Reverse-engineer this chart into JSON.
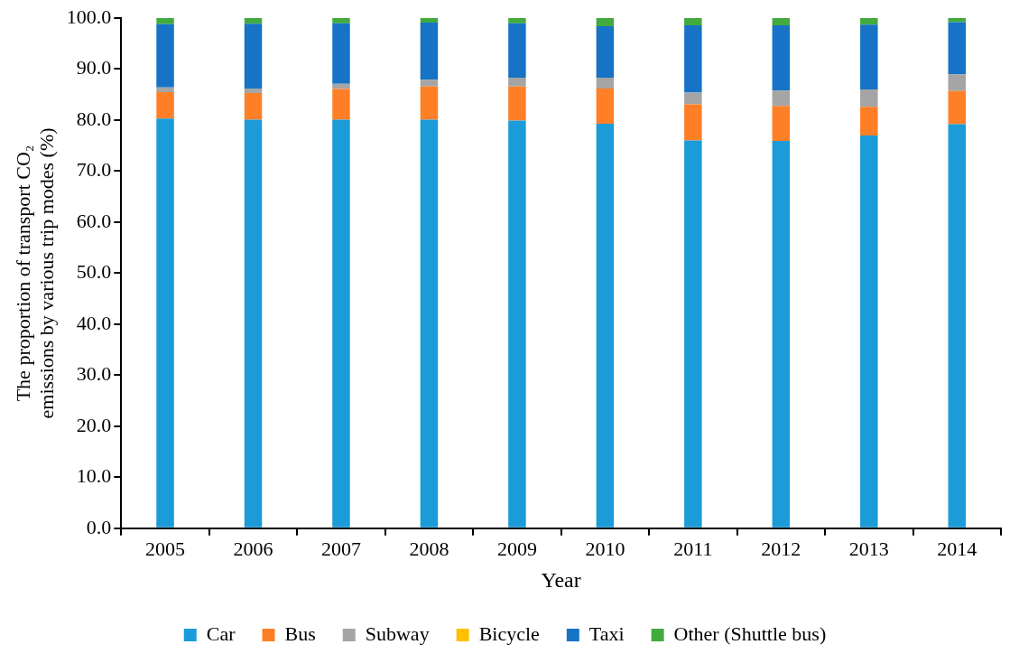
{
  "chart_data": {
    "type": "bar",
    "stacked": true,
    "xlabel": "Year",
    "ylabel": "The proportion of transport CO₂ emissions by various trip modes (%)",
    "categories": [
      "2005",
      "2006",
      "2007",
      "2008",
      "2009",
      "2010",
      "2011",
      "2012",
      "2013",
      "2014"
    ],
    "series": [
      {
        "name": "Car",
        "color": "#1b9bd7",
        "values": [
          80.3,
          80.1,
          80.1,
          80.1,
          79.9,
          79.3,
          76.0,
          75.9,
          77.0,
          79.2
        ]
      },
      {
        "name": "Bus",
        "color": "#ff7f27",
        "values": [
          5.2,
          5.2,
          6.0,
          6.5,
          6.7,
          6.9,
          7.1,
          6.9,
          5.6,
          6.5
        ]
      },
      {
        "name": "Subway",
        "color": "#a5a5a5",
        "values": [
          0.9,
          0.9,
          1.0,
          1.3,
          1.7,
          2.1,
          2.3,
          3.0,
          3.4,
          3.3
        ]
      },
      {
        "name": "Bicycle",
        "color": "#ffc000",
        "values": [
          0,
          0,
          0,
          0,
          0,
          0,
          0,
          0,
          0,
          0
        ]
      },
      {
        "name": "Taxi",
        "color": "#1673c6",
        "values": [
          12.4,
          12.7,
          11.9,
          11.2,
          10.7,
          10.1,
          13.2,
          12.8,
          12.7,
          10.2
        ]
      },
      {
        "name": "Other (Shuttle bus)",
        "color": "#43aa3e",
        "values": [
          1.2,
          1.1,
          1.0,
          0.9,
          1.0,
          1.6,
          1.4,
          1.4,
          1.3,
          0.8
        ]
      }
    ],
    "ylim": [
      0,
      100
    ],
    "yticks": [
      {
        "value": 0,
        "label": "0.0"
      },
      {
        "value": 10,
        "label": "10.0"
      },
      {
        "value": 20,
        "label": "20.0"
      },
      {
        "value": 30,
        "label": "30.0"
      },
      {
        "value": 40,
        "label": "40.0"
      },
      {
        "value": 50,
        "label": "50.0"
      },
      {
        "value": 60,
        "label": "60.0"
      },
      {
        "value": 70,
        "label": "70.0"
      },
      {
        "value": 80,
        "label": "80.0"
      },
      {
        "value": 90,
        "label": "90.0"
      },
      {
        "value": 100,
        "label": "100.0"
      }
    ],
    "grid": false,
    "legend": "bottom"
  }
}
